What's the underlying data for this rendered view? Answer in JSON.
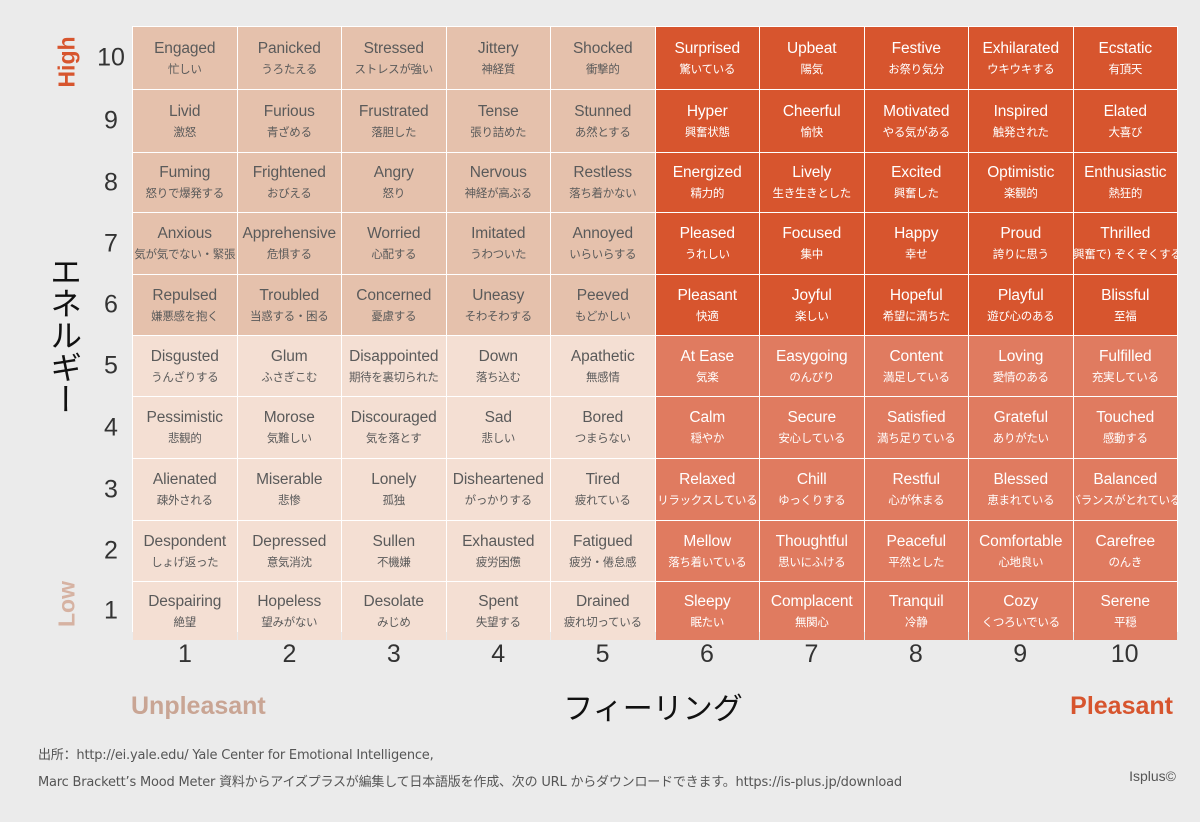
{
  "chart_data": {
    "type": "table",
    "title": "",
    "xlabel": "フィーリング",
    "ylabel": "エネルギー",
    "x_left_label": "Unpleasant",
    "x_right_label": "Pleasant",
    "y_top_label": "High",
    "y_bottom_label": "Low",
    "x_ticks": [
      "1",
      "2",
      "3",
      "4",
      "5",
      "6",
      "7",
      "8",
      "9",
      "10"
    ],
    "y_ticks": [
      "10",
      "9",
      "8",
      "7",
      "6",
      "5",
      "4",
      "3",
      "2",
      "1"
    ],
    "quadrant_colors": {
      "high_unpleasant": "#e5c1ac",
      "low_unpleasant": "#f4dfd3",
      "high_pleasant": "#d7552e",
      "low_pleasant": "#e07b60"
    },
    "rows": [
      {
        "energy": 10,
        "cells": [
          {
            "en": "Engaged",
            "jp": "忙しい"
          },
          {
            "en": "Panicked",
            "jp": "うろたえる"
          },
          {
            "en": "Stressed",
            "jp": "ストレスが強い"
          },
          {
            "en": "Jittery",
            "jp": "神経質"
          },
          {
            "en": "Shocked",
            "jp": "衝撃的"
          },
          {
            "en": "Surprised",
            "jp": "驚いている"
          },
          {
            "en": "Upbeat",
            "jp": "陽気"
          },
          {
            "en": "Festive",
            "jp": "お祭り気分"
          },
          {
            "en": "Exhilarated",
            "jp": "ウキウキする"
          },
          {
            "en": "Ecstatic",
            "jp": "有頂天"
          }
        ]
      },
      {
        "energy": 9,
        "cells": [
          {
            "en": "Livid",
            "jp": "激怒"
          },
          {
            "en": "Furious",
            "jp": "青ざめる"
          },
          {
            "en": "Frustrated",
            "jp": "落胆した"
          },
          {
            "en": "Tense",
            "jp": "張り詰めた"
          },
          {
            "en": "Stunned",
            "jp": "あ然とする"
          },
          {
            "en": "Hyper",
            "jp": "興奮状態"
          },
          {
            "en": "Cheerful",
            "jp": "愉快"
          },
          {
            "en": "Motivated",
            "jp": "やる気がある"
          },
          {
            "en": "Inspired",
            "jp": "触発された"
          },
          {
            "en": "Elated",
            "jp": "大喜び"
          }
        ]
      },
      {
        "energy": 8,
        "cells": [
          {
            "en": "Fuming",
            "jp": "怒りで爆発する"
          },
          {
            "en": "Frightened",
            "jp": "おびえる"
          },
          {
            "en": "Angry",
            "jp": "怒り"
          },
          {
            "en": "Nervous",
            "jp": "神経が高ぶる"
          },
          {
            "en": "Restless",
            "jp": "落ち着かない"
          },
          {
            "en": "Energized",
            "jp": "精力的"
          },
          {
            "en": "Lively",
            "jp": "生き生きとした"
          },
          {
            "en": "Excited",
            "jp": "興奮した"
          },
          {
            "en": "Optimistic",
            "jp": "楽観的"
          },
          {
            "en": "Enthusiastic",
            "jp": "熱狂的"
          }
        ]
      },
      {
        "energy": 7,
        "cells": [
          {
            "en": "Anxious",
            "jp": "気が気でない・緊張"
          },
          {
            "en": "Apprehensive",
            "jp": "危惧する"
          },
          {
            "en": "Worried",
            "jp": "心配する"
          },
          {
            "en": "Imitated",
            "jp": "うわついた"
          },
          {
            "en": "Annoyed",
            "jp": "いらいらする"
          },
          {
            "en": "Pleased",
            "jp": "うれしい"
          },
          {
            "en": "Focused",
            "jp": "集中"
          },
          {
            "en": "Happy",
            "jp": "幸せ"
          },
          {
            "en": "Proud",
            "jp": "誇りに思う"
          },
          {
            "en": "Thrilled",
            "jp": "(興奮で) ぞくぞくする"
          }
        ]
      },
      {
        "energy": 6,
        "cells": [
          {
            "en": "Repulsed",
            "jp": "嫌悪感を抱く"
          },
          {
            "en": "Troubled",
            "jp": "当惑する・困る"
          },
          {
            "en": "Concerned",
            "jp": "憂慮する"
          },
          {
            "en": "Uneasy",
            "jp": "そわそわする"
          },
          {
            "en": "Peeved",
            "jp": "もどかしい"
          },
          {
            "en": "Pleasant",
            "jp": "快適"
          },
          {
            "en": "Joyful",
            "jp": "楽しい"
          },
          {
            "en": "Hopeful",
            "jp": "希望に満ちた"
          },
          {
            "en": "Playful",
            "jp": "遊び心のある"
          },
          {
            "en": "Blissful",
            "jp": "至福"
          }
        ]
      },
      {
        "energy": 5,
        "cells": [
          {
            "en": "Disgusted",
            "jp": "うんざりする"
          },
          {
            "en": "Glum",
            "jp": "ふさぎこむ"
          },
          {
            "en": "Disappointed",
            "jp": "期待を裏切られた"
          },
          {
            "en": "Down",
            "jp": "落ち込む"
          },
          {
            "en": "Apathetic",
            "jp": "無感情"
          },
          {
            "en": "At Ease",
            "jp": "気楽"
          },
          {
            "en": "Easygoing",
            "jp": "のんびり"
          },
          {
            "en": "Content",
            "jp": "満足している"
          },
          {
            "en": "Loving",
            "jp": "愛情のある"
          },
          {
            "en": "Fulfilled",
            "jp": "充実している"
          }
        ]
      },
      {
        "energy": 4,
        "cells": [
          {
            "en": "Pessimistic",
            "jp": "悲観的"
          },
          {
            "en": "Morose",
            "jp": "気難しい"
          },
          {
            "en": "Discouraged",
            "jp": "気を落とす"
          },
          {
            "en": "Sad",
            "jp": "悲しい"
          },
          {
            "en": "Bored",
            "jp": "つまらない"
          },
          {
            "en": "Calm",
            "jp": "穏やか"
          },
          {
            "en": "Secure",
            "jp": "安心している"
          },
          {
            "en": "Satisfied",
            "jp": "満ち足りている"
          },
          {
            "en": "Grateful",
            "jp": "ありがたい"
          },
          {
            "en": "Touched",
            "jp": "感動する"
          }
        ]
      },
      {
        "energy": 3,
        "cells": [
          {
            "en": "Alienated",
            "jp": "疎外される"
          },
          {
            "en": "Miserable",
            "jp": "悲惨"
          },
          {
            "en": "Lonely",
            "jp": "孤独"
          },
          {
            "en": "Disheartened",
            "jp": "がっかりする"
          },
          {
            "en": "Tired",
            "jp": "疲れている"
          },
          {
            "en": "Relaxed",
            "jp": "リラックスしている"
          },
          {
            "en": "Chill",
            "jp": "ゆっくりする"
          },
          {
            "en": "Restful",
            "jp": "心が休まる"
          },
          {
            "en": "Blessed",
            "jp": "恵まれている"
          },
          {
            "en": "Balanced",
            "jp": "バランスがとれている"
          }
        ]
      },
      {
        "energy": 2,
        "cells": [
          {
            "en": "Despondent",
            "jp": "しょげ返った"
          },
          {
            "en": "Depressed",
            "jp": "意気消沈"
          },
          {
            "en": "Sullen",
            "jp": "不機嫌"
          },
          {
            "en": "Exhausted",
            "jp": "疲労困憊"
          },
          {
            "en": "Fatigued",
            "jp": "疲労・倦怠感"
          },
          {
            "en": "Mellow",
            "jp": "落ち着いている"
          },
          {
            "en": "Thoughtful",
            "jp": "思いにふける"
          },
          {
            "en": "Peaceful",
            "jp": "平然とした"
          },
          {
            "en": "Comfortable",
            "jp": "心地良い"
          },
          {
            "en": "Carefree",
            "jp": "のんき"
          }
        ]
      },
      {
        "energy": 1,
        "cells": [
          {
            "en": "Despairing",
            "jp": "絶望"
          },
          {
            "en": "Hopeless",
            "jp": "望みがない"
          },
          {
            "en": "Desolate",
            "jp": "みじめ"
          },
          {
            "en": "Spent",
            "jp": "失望する"
          },
          {
            "en": "Drained",
            "jp": "疲れ切っている"
          },
          {
            "en": "Sleepy",
            "jp": "眠たい"
          },
          {
            "en": "Complacent",
            "jp": "無関心"
          },
          {
            "en": "Tranquil",
            "jp": "冷静"
          },
          {
            "en": "Cozy",
            "jp": "くつろいでいる"
          },
          {
            "en": "Serene",
            "jp": "平穏"
          }
        ]
      }
    ]
  },
  "source": {
    "line1": "出所：http://ei.yale.edu/ Yale Center for Emotional Intelligence,",
    "line2": "Marc Brackett’s Mood Meter 資料からアイズプラスが編集して日本語版を作成、次の URL からダウンロードできます。https://is-plus.jp/download",
    "credit": "Isplus©"
  }
}
